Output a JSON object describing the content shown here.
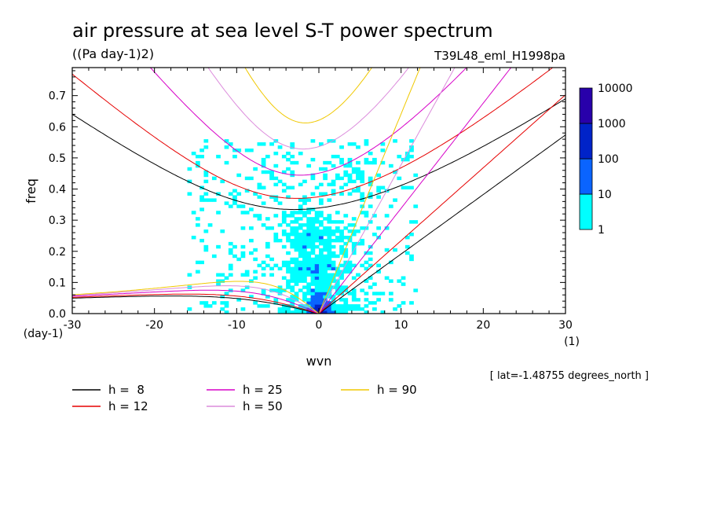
{
  "chart_data": {
    "type": "heatmap",
    "title": "air pressure at sea level S-T power spectrum",
    "units": "((Pa day-1)2)",
    "experiment": "T39L48_eml_H1998pa",
    "xlabel": "wvn",
    "xunit": "(1)",
    "ylabel": "freq",
    "yunit": "(day-1)",
    "xlim": [
      -30,
      30
    ],
    "ylim": [
      0,
      0.79
    ],
    "xticks": [
      "-30",
      "-20",
      "-10",
      "0",
      "10",
      "20",
      "30"
    ],
    "yticks": [
      "0.0",
      "0.1",
      "0.2",
      "0.3",
      "0.4",
      "0.5",
      "0.6",
      "0.7"
    ],
    "annotation": "[ lat=-1.48755 degrees_north ]",
    "colorbar": {
      "levels": [
        "1",
        "10",
        "100",
        "1000",
        "10000"
      ],
      "colors": [
        "#00ffff",
        "#0a64ff",
        "#0023c8",
        "#2800aa"
      ]
    },
    "legend": [
      {
        "label": "h =  8",
        "h": 8,
        "color": "#000000"
      },
      {
        "label": "h = 12",
        "h": 12,
        "color": "#e60000"
      },
      {
        "label": "h = 25",
        "h": 25,
        "color": "#d700c8"
      },
      {
        "label": "h = 50",
        "h": 50,
        "color": "#dc8cdc"
      },
      {
        "label": "h = 90",
        "h": 90,
        "color": "#f0c800"
      }
    ]
  }
}
